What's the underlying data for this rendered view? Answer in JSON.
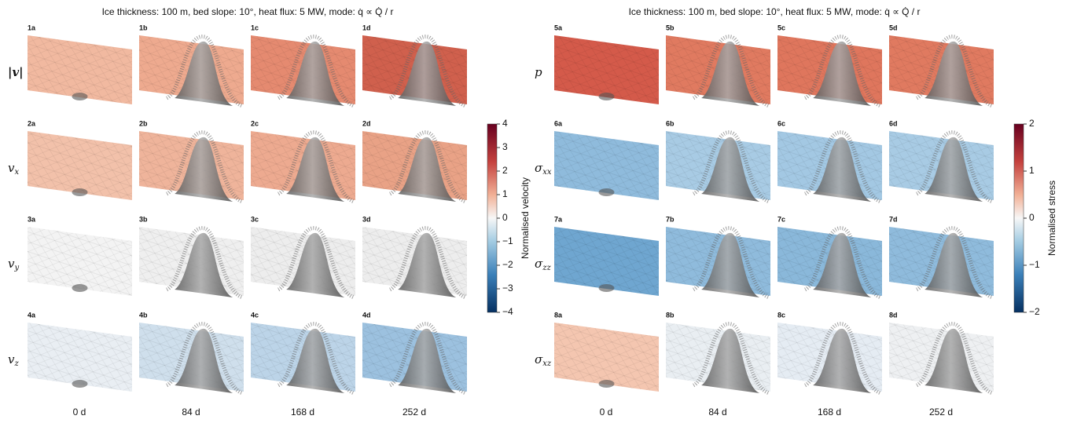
{
  "figures": [
    {
      "title": "Ice thickness: 100 m,  bed slope: 10°,  heat flux: 5 MW,  mode: q̇ ∝ Q̇ / r",
      "columns": [
        "0 d",
        "84 d",
        "168 d",
        "252 d"
      ],
      "rows": [
        {
          "symbol": "|v|",
          "panels": [
            "1a",
            "1b",
            "1c",
            "1d"
          ]
        },
        {
          "symbol": "v",
          "subscript": "x",
          "panels": [
            "2a",
            "2b",
            "2c",
            "2d"
          ]
        },
        {
          "symbol": "v",
          "subscript": "y",
          "panels": [
            "3a",
            "3b",
            "3c",
            "3d"
          ]
        },
        {
          "symbol": "v",
          "subscript": "z",
          "panels": [
            "4a",
            "4b",
            "4c",
            "4d"
          ]
        }
      ],
      "colorbar": {
        "label": "Normalised velocity",
        "ylim": [
          -4,
          4
        ],
        "yticks": [
          4,
          3,
          2,
          1,
          0,
          {
            "value": -1,
            "label": "−1"
          },
          {
            "value": -2,
            "label": "−2"
          },
          {
            "value": -3,
            "label": "−3"
          },
          {
            "value": -4,
            "label": "−4"
          }
        ]
      }
    },
    {
      "title": "Ice thickness: 100 m,  bed slope: 10°,  heat flux: 5 MW,  mode: q̇ ∝ Q̇ / r",
      "columns": [
        "0 d",
        "84 d",
        "168 d",
        "252 d"
      ],
      "rows": [
        {
          "symbol": "p",
          "panels": [
            "5a",
            "5b",
            "5c",
            "5d"
          ]
        },
        {
          "symbol": "σ",
          "subscript": "xx",
          "panels": [
            "6a",
            "6b",
            "6c",
            "6d"
          ]
        },
        {
          "symbol": "σ",
          "subscript": "zz",
          "panels": [
            "7a",
            "7b",
            "7c",
            "7d"
          ]
        },
        {
          "symbol": "σ",
          "subscript": "xz",
          "panels": [
            "8a",
            "8b",
            "8c",
            "8d"
          ]
        }
      ],
      "colorbar": {
        "label": "Normalised stress",
        "ylim": [
          -2,
          2
        ],
        "yticks": [
          2,
          1,
          0,
          {
            "value": -1,
            "label": "−1"
          },
          {
            "value": -2,
            "label": "−2"
          }
        ]
      }
    }
  ]
}
